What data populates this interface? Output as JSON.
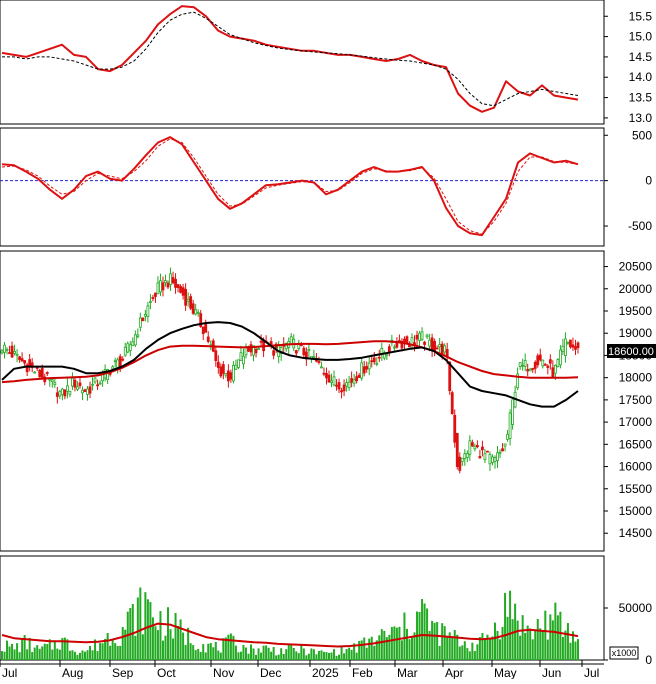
{
  "chart_data": {
    "type": "line",
    "x_tick_labels": [
      "Jul",
      "Aug",
      "Sep",
      "Oct",
      "Nov",
      "Dec",
      "2025",
      "Feb",
      "Mar",
      "Apr",
      "May",
      "Jun",
      "Jul"
    ],
    "panels": [
      {
        "name": "",
        "type": "line",
        "ylim": [
          12.85,
          15.9
        ],
        "yticks": [
          "15.5",
          "15.0",
          "14.5",
          "14.0",
          "13.5",
          "13.0"
        ],
        "series": [
          {
            "name": "",
            "color": "#dd1111",
            "style": "solid",
            "values": [
              14.6,
              14.55,
              14.5,
              14.6,
              14.7,
              14.8,
              14.55,
              14.5,
              14.2,
              14.15,
              14.3,
              14.6,
              14.9,
              15.3,
              15.55,
              15.75,
              15.72,
              15.5,
              15.15,
              15.0,
              14.95,
              14.9,
              14.8,
              14.75,
              14.7,
              14.65,
              14.65,
              14.6,
              14.55,
              14.55,
              14.5,
              14.45,
              14.4,
              14.45,
              14.55,
              14.4,
              14.3,
              14.25,
              13.6,
              13.3,
              13.15,
              13.25,
              13.9,
              13.65,
              13.55,
              13.8,
              13.55,
              13.5,
              13.45
            ]
          },
          {
            "name": "",
            "color": "#000000",
            "style": "dashed",
            "values": [
              14.5,
              14.5,
              14.45,
              14.5,
              14.5,
              14.45,
              14.4,
              14.3,
              14.2,
              14.2,
              14.25,
              14.4,
              14.7,
              15.1,
              15.4,
              15.55,
              15.6,
              15.45,
              15.25,
              15.05,
              14.95,
              14.85,
              14.78,
              14.72,
              14.68,
              14.65,
              14.62,
              14.6,
              14.58,
              14.55,
              14.52,
              14.48,
              14.45,
              14.42,
              14.4,
              14.35,
              14.3,
              14.2,
              13.95,
              13.6,
              13.35,
              13.3,
              13.45,
              13.6,
              13.65,
              13.7,
              13.65,
              13.6,
              13.55
            ]
          }
        ]
      },
      {
        "name": "",
        "type": "line",
        "ylim": [
          -720,
          580
        ],
        "yticks": [
          "500",
          "0",
          "-500"
        ],
        "zero_line": true,
        "series": [
          {
            "name": "",
            "color": "#dd1111",
            "style": "solid",
            "values": [
              180,
              170,
              100,
              20,
              -100,
              -200,
              -100,
              50,
              100,
              20,
              0,
              130,
              280,
              420,
              480,
              400,
              200,
              0,
              -200,
              -310,
              -250,
              -150,
              -50,
              -40,
              -20,
              0,
              -20,
              -150,
              -100,
              0,
              100,
              150,
              100,
              100,
              120,
              150,
              0,
              -300,
              -500,
              -580,
              -600,
              -400,
              -200,
              200,
              300,
              250,
              200,
              220,
              180
            ]
          },
          {
            "name": "",
            "color": "#dd1111",
            "style": "dashed",
            "values": [
              150,
              160,
              120,
              50,
              -60,
              -150,
              -120,
              0,
              80,
              50,
              20,
              100,
              220,
              380,
              460,
              420,
              250,
              50,
              -150,
              -280,
              -260,
              -170,
              -80,
              -50,
              -30,
              -10,
              -20,
              -120,
              -110,
              -20,
              80,
              130,
              110,
              100,
              110,
              140,
              30,
              -200,
              -450,
              -550,
              -590,
              -450,
              -250,
              100,
              260,
              260,
              210,
              200,
              180
            ]
          }
        ]
      },
      {
        "name": "",
        "type": "candlestick",
        "ylim": [
          14100,
          20850
        ],
        "yticks": [
          "20500",
          "20000",
          "19500",
          "19000",
          "18500",
          "18000",
          "17500",
          "17000",
          "16500",
          "16000",
          "15500",
          "15000",
          "14500"
        ],
        "current_value_label": "18600.00",
        "close": [
          18700,
          18500,
          18300,
          18100,
          17900,
          17600,
          17900,
          17700,
          17900,
          18200,
          18400,
          18900,
          19500,
          20000,
          20200,
          19900,
          19500,
          19000,
          18200,
          18000,
          18500,
          18700,
          18700,
          18600,
          18800,
          18600,
          18400,
          18100,
          17800,
          17900,
          18200,
          18400,
          18600,
          18800,
          18800,
          18900,
          18700,
          18600,
          15900,
          16500,
          16300,
          16100,
          16500,
          18200,
          18300,
          18400,
          18100,
          18800,
          18600
        ],
        "series": [
          {
            "name": "",
            "color": "#cc0000",
            "style": "solid",
            "values": [
              17900,
              17920,
              17950,
              17970,
              17990,
              18000,
              18010,
              18020,
              18050,
              18120,
              18220,
              18350,
              18500,
              18620,
              18700,
              18720,
              18720,
              18710,
              18700,
              18690,
              18680,
              18690,
              18710,
              18730,
              18750,
              18760,
              18760,
              18750,
              18760,
              18780,
              18800,
              18820,
              18820,
              18800,
              18750,
              18680,
              18600,
              18480,
              18350,
              18250,
              18150,
              18080,
              18050,
              18020,
              18000,
              18000,
              18000,
              18000,
              18010
            ]
          },
          {
            "name": "",
            "color": "#000000",
            "style": "solid",
            "values": [
              17950,
              18200,
              18250,
              18250,
              18250,
              18250,
              18200,
              18100,
              18100,
              18150,
              18250,
              18400,
              18650,
              18850,
              19000,
              19100,
              19180,
              19230,
              19250,
              19230,
              19150,
              19000,
              18800,
              18600,
              18500,
              18450,
              18420,
              18400,
              18400,
              18420,
              18450,
              18500,
              18550,
              18600,
              18650,
              18680,
              18600,
              18400,
              18100,
              17800,
              17700,
              17650,
              17600,
              17500,
              17400,
              17350,
              17350,
              17500,
              17700
            ]
          }
        ]
      },
      {
        "name": "",
        "type": "bar",
        "ylim": [
          0,
          100000
        ],
        "yticks": [
          "50000",
          "0"
        ],
        "unit_label": "x1000",
        "values": [
          15000,
          12000,
          18000,
          10000,
          14000,
          20000,
          11000,
          9000,
          16000,
          25000,
          30000,
          45000,
          55000,
          40000,
          35000,
          28000,
          20000,
          15000,
          12000,
          18000,
          14000,
          10000,
          12000,
          9000,
          11000,
          10000,
          8000,
          7000,
          9000,
          11000,
          15000,
          20000,
          25000,
          28000,
          35000,
          50000,
          30000,
          25000,
          20000,
          15000,
          18000,
          30000,
          55000,
          45000,
          25000,
          38000,
          40000,
          30000,
          20000
        ],
        "series": [
          {
            "name": "",
            "color": "#cc0000",
            "style": "solid",
            "values": [
              24000,
              21000,
              20000,
              19000,
              18000,
              18000,
              17500,
              17000,
              17500,
              19000,
              22000,
              26000,
              31000,
              35000,
              34000,
              30000,
              26000,
              22000,
              20000,
              19000,
              18000,
              17000,
              16500,
              15500,
              15000,
              14500,
              14000,
              13500,
              13000,
              13500,
              14500,
              16000,
              18000,
              20000,
              22000,
              24000,
              23500,
              22500,
              21500,
              20500,
              20000,
              21000,
              24000,
              28000,
              29000,
              28000,
              27000,
              25000,
              23000
            ]
          }
        ]
      }
    ]
  }
}
